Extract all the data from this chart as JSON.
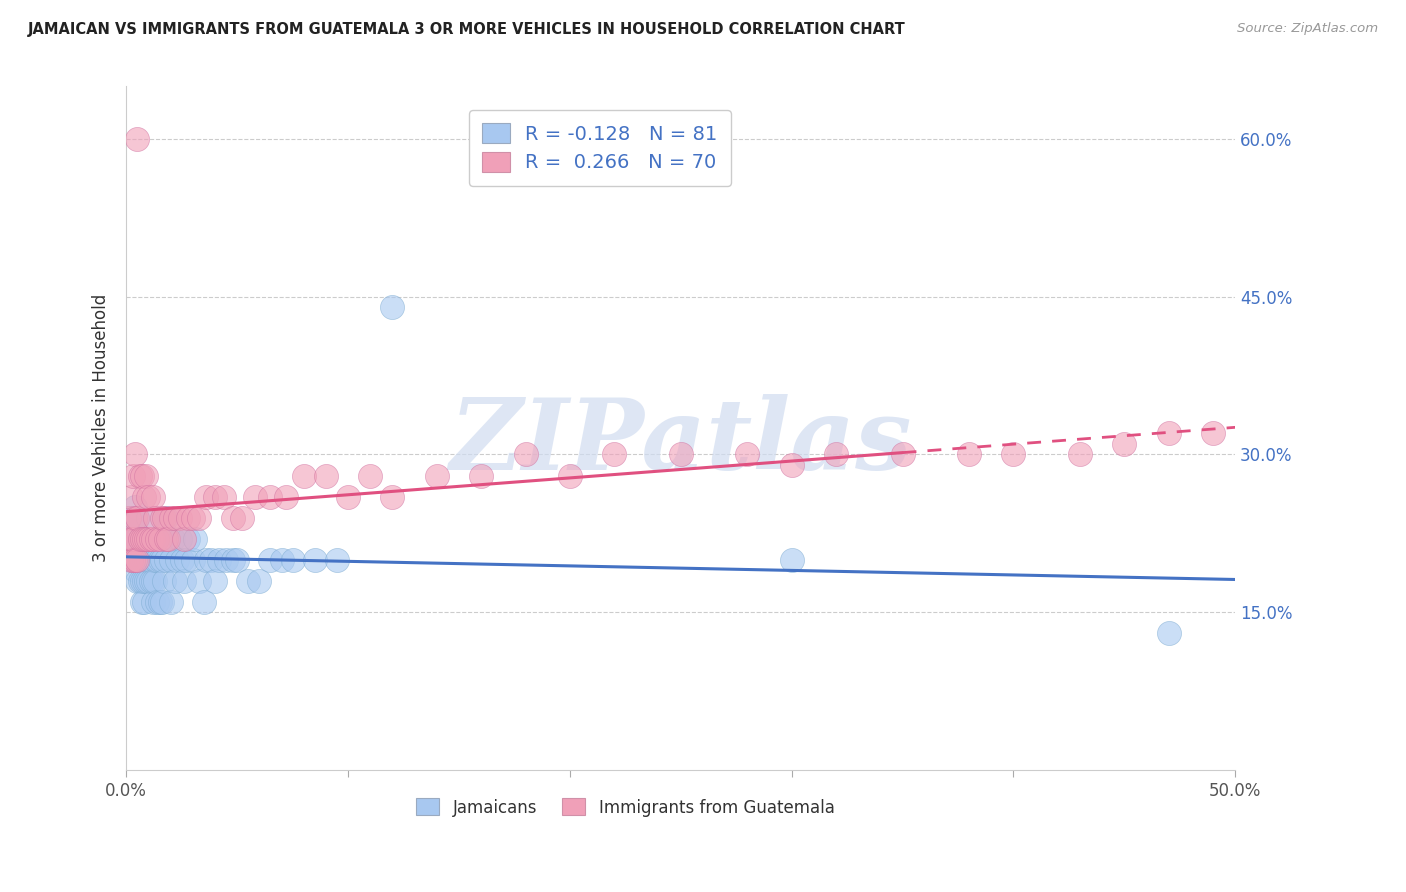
{
  "title": "JAMAICAN VS IMMIGRANTS FROM GUATEMALA 3 OR MORE VEHICLES IN HOUSEHOLD CORRELATION CHART",
  "source": "Source: ZipAtlas.com",
  "ylabel": "3 or more Vehicles in Household",
  "watermark": "ZIPatlas",
  "xlim": [
    0.0,
    0.5
  ],
  "ylim": [
    0.0,
    0.65
  ],
  "xtick_positions": [
    0.0,
    0.1,
    0.2,
    0.3,
    0.4,
    0.5
  ],
  "xtick_labels": [
    "0.0%",
    "",
    "",
    "",
    "",
    "50.0%"
  ],
  "yticks_right": [
    0.15,
    0.3,
    0.45,
    0.6
  ],
  "yticklabels_right": [
    "15.0%",
    "30.0%",
    "45.0%",
    "60.0%"
  ],
  "jamaicans_color": "#A8C8F0",
  "guatemala_color": "#F0A0B8",
  "trend_blue": "#4472C4",
  "trend_pink": "#E05080",
  "jamaicans_R": -0.128,
  "jamaicans_N": 81,
  "guatemala_R": 0.266,
  "guatemala_N": 70,
  "legend_label1": "Jamaicans",
  "legend_label2": "Immigrants from Guatemala",
  "background_color": "#FFFFFF",
  "jamaicans_x": [
    0.001,
    0.001,
    0.002,
    0.002,
    0.003,
    0.003,
    0.003,
    0.004,
    0.004,
    0.004,
    0.005,
    0.005,
    0.005,
    0.005,
    0.006,
    0.006,
    0.006,
    0.007,
    0.007,
    0.007,
    0.007,
    0.008,
    0.008,
    0.008,
    0.008,
    0.009,
    0.009,
    0.009,
    0.01,
    0.01,
    0.01,
    0.01,
    0.011,
    0.011,
    0.012,
    0.012,
    0.012,
    0.013,
    0.013,
    0.014,
    0.014,
    0.015,
    0.015,
    0.016,
    0.016,
    0.017,
    0.017,
    0.018,
    0.018,
    0.019,
    0.02,
    0.02,
    0.021,
    0.022,
    0.023,
    0.024,
    0.025,
    0.026,
    0.027,
    0.028,
    0.03,
    0.031,
    0.033,
    0.035,
    0.036,
    0.038,
    0.04,
    0.042,
    0.045,
    0.048,
    0.05,
    0.055,
    0.06,
    0.065,
    0.07,
    0.075,
    0.085,
    0.095,
    0.12,
    0.3,
    0.47
  ],
  "jamaicans_y": [
    0.22,
    0.24,
    0.2,
    0.22,
    0.2,
    0.22,
    0.24,
    0.19,
    0.22,
    0.25,
    0.18,
    0.2,
    0.22,
    0.24,
    0.18,
    0.2,
    0.22,
    0.16,
    0.18,
    0.2,
    0.22,
    0.16,
    0.18,
    0.2,
    0.22,
    0.18,
    0.2,
    0.22,
    0.18,
    0.2,
    0.22,
    0.24,
    0.18,
    0.2,
    0.16,
    0.18,
    0.22,
    0.18,
    0.2,
    0.16,
    0.2,
    0.16,
    0.2,
    0.16,
    0.2,
    0.18,
    0.22,
    0.2,
    0.24,
    0.22,
    0.16,
    0.2,
    0.22,
    0.18,
    0.2,
    0.22,
    0.2,
    0.18,
    0.2,
    0.22,
    0.2,
    0.22,
    0.18,
    0.16,
    0.2,
    0.2,
    0.18,
    0.2,
    0.2,
    0.2,
    0.2,
    0.18,
    0.18,
    0.2,
    0.2,
    0.2,
    0.2,
    0.2,
    0.44,
    0.2,
    0.13
  ],
  "guatemala_x": [
    0.001,
    0.001,
    0.002,
    0.002,
    0.002,
    0.003,
    0.003,
    0.003,
    0.004,
    0.004,
    0.004,
    0.005,
    0.005,
    0.005,
    0.006,
    0.006,
    0.007,
    0.007,
    0.008,
    0.008,
    0.009,
    0.009,
    0.01,
    0.01,
    0.011,
    0.012,
    0.012,
    0.013,
    0.014,
    0.015,
    0.016,
    0.017,
    0.018,
    0.019,
    0.02,
    0.022,
    0.024,
    0.026,
    0.028,
    0.03,
    0.033,
    0.036,
    0.04,
    0.044,
    0.048,
    0.052,
    0.058,
    0.065,
    0.072,
    0.08,
    0.09,
    0.1,
    0.11,
    0.12,
    0.14,
    0.16,
    0.18,
    0.2,
    0.22,
    0.25,
    0.28,
    0.3,
    0.32,
    0.35,
    0.38,
    0.4,
    0.43,
    0.45,
    0.47,
    0.49
  ],
  "guatemala_y": [
    0.22,
    0.24,
    0.2,
    0.22,
    0.26,
    0.2,
    0.22,
    0.28,
    0.2,
    0.24,
    0.3,
    0.2,
    0.24,
    0.6,
    0.22,
    0.28,
    0.22,
    0.28,
    0.22,
    0.26,
    0.22,
    0.28,
    0.22,
    0.26,
    0.22,
    0.22,
    0.26,
    0.24,
    0.22,
    0.22,
    0.24,
    0.24,
    0.22,
    0.22,
    0.24,
    0.24,
    0.24,
    0.22,
    0.24,
    0.24,
    0.24,
    0.26,
    0.26,
    0.26,
    0.24,
    0.24,
    0.26,
    0.26,
    0.26,
    0.28,
    0.28,
    0.26,
    0.28,
    0.26,
    0.28,
    0.28,
    0.3,
    0.28,
    0.3,
    0.3,
    0.3,
    0.29,
    0.3,
    0.3,
    0.3,
    0.3,
    0.3,
    0.31,
    0.32,
    0.32
  ]
}
